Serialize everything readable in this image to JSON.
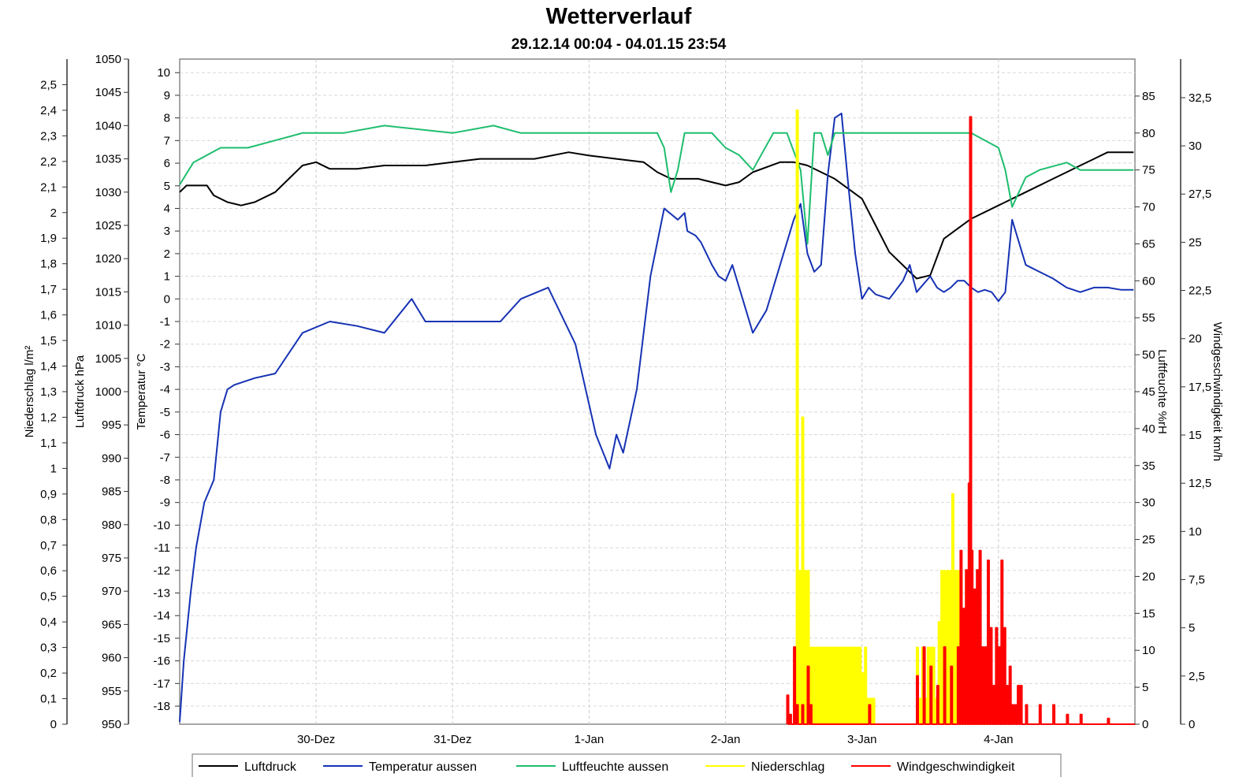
{
  "chart_data": {
    "type": "line",
    "title": "Wetterverlauf",
    "subtitle": "29.12.14 00:04 - 04.01.15 23:54",
    "x_ticks": [
      "30-Dez",
      "31-Dez",
      "1-Jan",
      "2-Jan",
      "3-Jan",
      "4-Jan"
    ],
    "x_range_days_label": "29.12.14 00:04 - 04.01.15 23:54",
    "axes": {
      "niederschlag": {
        "label": "Niederschlag l/m²",
        "ylim": [
          0,
          2.6
        ],
        "ticks": [
          "0",
          "0,1",
          "0,2",
          "0,3",
          "0,4",
          "0,5",
          "0,6",
          "0,7",
          "0,8",
          "0,9",
          "1",
          "1,1",
          "1,2",
          "1,3",
          "1,4",
          "1,5",
          "1,6",
          "1,7",
          "1,8",
          "1,9",
          "2",
          "2,1",
          "2,2",
          "2,3",
          "2,4",
          "2,5"
        ]
      },
      "luftdruck": {
        "label": "Luftdruck hPa",
        "ylim": [
          950,
          1050
        ],
        "ticks": [
          "950",
          "955",
          "960",
          "965",
          "970",
          "975",
          "980",
          "985",
          "990",
          "995",
          "1000",
          "1005",
          "1010",
          "1015",
          "1020",
          "1025",
          "1030",
          "1035",
          "1040",
          "1045",
          "1050"
        ]
      },
      "temperatur": {
        "label": "Temperatur °C",
        "ylim": [
          -18.8,
          10.6
        ],
        "ticks": [
          "-18",
          "-17",
          "-16",
          "-15",
          "-14",
          "-13",
          "-12",
          "-11",
          "-10",
          "-9",
          "-8",
          "-7",
          "-6",
          "-5",
          "-4",
          "-3",
          "-2",
          "-1",
          "0",
          "1",
          "2",
          "3",
          "4",
          "5",
          "6",
          "7",
          "8",
          "9",
          "10"
        ]
      },
      "luftfeuchte": {
        "label": "Luftfeuchte %rH",
        "ylim": [
          0,
          90
        ],
        "ticks": [
          "0",
          "5",
          "10",
          "15",
          "20",
          "25",
          "30",
          "35",
          "40",
          "45",
          "50",
          "55",
          "60",
          "65",
          "70",
          "75",
          "80",
          "85"
        ]
      },
      "wind": {
        "label": "Windgeschwindigkeit km/h",
        "ylim": [
          0,
          34.5
        ],
        "ticks": [
          "0",
          "2,5",
          "5",
          "7,5",
          "10",
          "12,5",
          "15",
          "17,5",
          "20",
          "22,5",
          "25",
          "27,5",
          "30",
          "32,5"
        ]
      }
    },
    "series": [
      {
        "name": "Luftdruck",
        "axis": "luftdruck",
        "color": "#000000",
        "x": [
          0,
          0.05,
          0.2,
          0.25,
          0.35,
          0.45,
          0.55,
          0.7,
          0.8,
          0.9,
          1.0,
          1.1,
          1.3,
          1.5,
          1.7,
          1.8,
          2.0,
          2.2,
          2.4,
          2.6,
          2.85,
          3.0,
          3.2,
          3.4,
          3.5,
          3.6,
          3.8,
          4.0,
          4.1,
          4.2,
          4.4,
          4.5,
          4.6,
          4.8,
          5.0,
          5.1,
          5.2,
          5.3,
          5.4,
          5.5,
          5.6,
          5.8,
          6.0,
          6.2,
          6.4,
          6.5,
          6.6,
          6.7,
          6.8,
          6.99
        ],
        "y": [
          1030,
          1031,
          1031,
          1029.5,
          1028.5,
          1028,
          1028.5,
          1030,
          1032,
          1034,
          1034.5,
          1033.5,
          1033.5,
          1034,
          1034,
          1034,
          1034.5,
          1035,
          1035,
          1035,
          1036,
          1035.5,
          1035,
          1034.5,
          1033,
          1032,
          1032,
          1031,
          1031.5,
          1033,
          1034.5,
          1034.5,
          1034,
          1032,
          1029,
          1025,
          1021,
          1019,
          1017,
          1017.5,
          1023,
          1026,
          1028,
          1030,
          1032,
          1033,
          1034,
          1035,
          1036,
          1036
        ]
      },
      {
        "name": "Temperatur aussen",
        "axis": "temperatur",
        "color": "#1632b4",
        "x": [
          0,
          0.03,
          0.08,
          0.12,
          0.18,
          0.25,
          0.3,
          0.35,
          0.4,
          0.55,
          0.7,
          0.9,
          1.1,
          1.3,
          1.5,
          1.7,
          1.8,
          1.95,
          2.1,
          2.2,
          2.35,
          2.5,
          2.7,
          2.9,
          3.05,
          3.15,
          3.2,
          3.25,
          3.35,
          3.45,
          3.55,
          3.65,
          3.7,
          3.72,
          3.78,
          3.82,
          3.9,
          3.95,
          4.0,
          4.05,
          4.1,
          4.2,
          4.3,
          4.4,
          4.5,
          4.55,
          4.6,
          4.65,
          4.7,
          4.75,
          4.8,
          4.85,
          4.9,
          4.95,
          5.0,
          5.05,
          5.1,
          5.2,
          5.3,
          5.35,
          5.4,
          5.5,
          5.55,
          5.6,
          5.65,
          5.7,
          5.75,
          5.8,
          5.85,
          5.9,
          5.95,
          6.0,
          6.05,
          6.1,
          6.2,
          6.3,
          6.4,
          6.5,
          6.6,
          6.7,
          6.8,
          6.9,
          6.99
        ],
        "y": [
          -18.7,
          -16,
          -13,
          -11,
          -9,
          -8,
          -5,
          -4,
          -3.8,
          -3.5,
          -3.3,
          -1.5,
          -1,
          -1.2,
          -1.5,
          0,
          -1,
          -1,
          -1,
          -1,
          -1,
          0,
          0.5,
          -2,
          -6,
          -7.5,
          -6,
          -6.8,
          -4,
          1,
          4,
          3.5,
          3.8,
          3,
          2.8,
          2.5,
          1.5,
          1.0,
          0.8,
          1.5,
          0.5,
          -1.5,
          -0.5,
          1.5,
          3.5,
          4.2,
          2.0,
          1.2,
          1.5,
          5.5,
          8,
          8.2,
          5,
          2,
          0,
          0.5,
          0.2,
          0,
          0.8,
          1.5,
          0.3,
          1.0,
          0.5,
          0.3,
          0.5,
          0.8,
          0.8,
          0.5,
          0.3,
          0.4,
          0.3,
          -0.1,
          0.3,
          3.5,
          1.5,
          1.2,
          0.9,
          0.5,
          0.3,
          0.5,
          0.5,
          0.4,
          0.4
        ]
      },
      {
        "name": "Luftfeuchte aussen",
        "axis": "luftfeuchte",
        "color": "#1ebe6e",
        "x": [
          0,
          0.1,
          0.2,
          0.3,
          0.5,
          0.7,
          0.9,
          1.0,
          1.2,
          1.5,
          2.0,
          2.3,
          2.5,
          2.9,
          3.1,
          3.3,
          3.5,
          3.55,
          3.6,
          3.65,
          3.7,
          3.8,
          3.9,
          4.0,
          4.1,
          4.2,
          4.35,
          4.45,
          4.55,
          4.6,
          4.65,
          4.7,
          4.75,
          4.8,
          5.0,
          5.1,
          5.2,
          5.4,
          5.6,
          5.7,
          5.8,
          6.0,
          6.05,
          6.1,
          6.2,
          6.3,
          6.5,
          6.6,
          6.8,
          6.99
        ],
        "y": [
          73,
          76,
          77,
          78,
          78,
          79,
          80,
          80,
          80,
          81,
          80,
          81,
          80,
          80,
          80,
          80,
          80,
          78,
          72,
          75,
          80,
          80,
          80,
          78,
          77,
          75,
          80,
          80,
          75,
          65,
          80,
          80,
          77,
          80,
          80,
          80,
          80,
          80,
          80,
          80,
          80,
          78,
          75,
          70,
          74,
          75,
          76,
          75,
          75,
          75
        ]
      },
      {
        "name": "Niederschlag",
        "axis": "niederschlag",
        "color": "#ffff00",
        "x": [
          4.5,
          4.52,
          4.54,
          4.56,
          4.58,
          4.6,
          4.62,
          4.64,
          4.66,
          4.68,
          4.7,
          4.72,
          4.74,
          4.76,
          4.78,
          4.8,
          4.82,
          4.84,
          4.86,
          4.88,
          4.9,
          4.92,
          4.94,
          4.96,
          4.98,
          5.0,
          5.02,
          5.04,
          5.06,
          5.08,
          5.1,
          5.4,
          5.42,
          5.44,
          5.46,
          5.48,
          5.5,
          5.52,
          5.54,
          5.56,
          5.58,
          5.6,
          5.62,
          5.64,
          5.66,
          5.68,
          5.7,
          5.72,
          5.74,
          5.76,
          5.78,
          5.8,
          5.82,
          5.84,
          5.86,
          5.88,
          5.9
        ],
        "y": [
          0.1,
          2.4,
          0.6,
          1.2,
          0.6,
          0.6,
          0.3,
          0.3,
          0.3,
          0.3,
          0.3,
          0.3,
          0.3,
          0.3,
          0.3,
          0.3,
          0.3,
          0.3,
          0.3,
          0.3,
          0.3,
          0.3,
          0.3,
          0.3,
          0.3,
          0.2,
          0.3,
          0.1,
          0.1,
          0.1,
          0,
          0.3,
          0.1,
          0.3,
          0.1,
          0.3,
          0.3,
          0.3,
          0.1,
          0.4,
          0.6,
          0.6,
          0.6,
          0.6,
          0.9,
          0.6,
          0.6,
          0.6,
          0.3,
          0.6,
          0.6,
          0.3,
          0.3,
          0.3,
          0.3,
          0.1,
          0
        ]
      },
      {
        "name": "Windgeschwindigkeit",
        "axis": "wind",
        "color": "#ff0000",
        "x": [
          4.45,
          4.47,
          4.5,
          4.52,
          4.54,
          4.56,
          4.58,
          4.6,
          4.62,
          4.64,
          4.66,
          5.05,
          5.1,
          5.4,
          5.45,
          5.5,
          5.55,
          5.6,
          5.65,
          5.7,
          5.72,
          5.74,
          5.76,
          5.78,
          5.79,
          5.8,
          5.82,
          5.84,
          5.86,
          5.88,
          5.9,
          5.92,
          5.94,
          5.96,
          5.98,
          6.0,
          6.02,
          6.04,
          6.06,
          6.08,
          6.1,
          6.12,
          6.14,
          6.16,
          6.2,
          6.3,
          6.4,
          6.5,
          6.6,
          6.8,
          6.99
        ],
        "y": [
          1.5,
          0.5,
          4,
          1,
          0,
          1,
          0,
          3,
          1,
          0,
          0,
          1,
          0,
          2.5,
          4,
          3,
          2,
          4,
          3,
          4,
          9,
          6,
          8,
          12.5,
          31.5,
          9,
          7,
          8,
          9,
          4,
          4,
          8.5,
          5,
          2,
          5,
          4,
          8.5,
          5,
          2,
          3,
          1,
          1,
          2,
          2,
          1,
          1,
          1,
          0.5,
          0.5,
          0.3,
          0
        ]
      }
    ],
    "legend": [
      "Luftdruck",
      "Temperatur aussen",
      "Luftfeuchte aussen",
      "Niederschlag",
      "Windgeschwindigkeit"
    ],
    "legend_position": "bottom",
    "grid": true
  }
}
